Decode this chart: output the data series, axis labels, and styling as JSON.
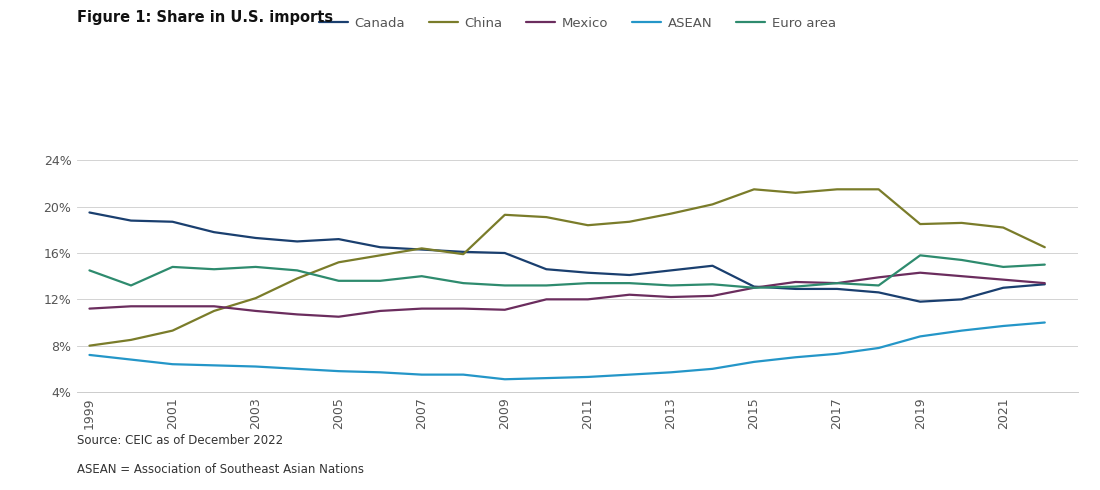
{
  "title": "Figure 1: Share in U.S. imports",
  "years": [
    1999,
    2000,
    2001,
    2002,
    2003,
    2004,
    2005,
    2006,
    2007,
    2008,
    2009,
    2010,
    2011,
    2012,
    2013,
    2014,
    2015,
    2016,
    2017,
    2018,
    2019,
    2020,
    2021,
    2022
  ],
  "canada": [
    19.5,
    18.8,
    18.7,
    17.8,
    17.3,
    17.0,
    17.2,
    16.5,
    16.3,
    16.1,
    16.0,
    14.6,
    14.3,
    14.1,
    14.5,
    14.9,
    13.1,
    12.9,
    12.9,
    12.6,
    11.8,
    12.0,
    13.0,
    13.3
  ],
  "china": [
    8.0,
    8.5,
    9.3,
    11.0,
    12.1,
    13.8,
    15.2,
    15.8,
    16.4,
    15.9,
    19.3,
    19.1,
    18.4,
    18.7,
    19.4,
    20.2,
    21.5,
    21.2,
    21.5,
    21.5,
    18.5,
    18.6,
    18.2,
    16.5
  ],
  "mexico": [
    11.2,
    11.4,
    11.4,
    11.4,
    11.0,
    10.7,
    10.5,
    11.0,
    11.2,
    11.2,
    11.1,
    12.0,
    12.0,
    12.4,
    12.2,
    12.3,
    13.0,
    13.5,
    13.4,
    13.9,
    14.3,
    14.0,
    13.7,
    13.4
  ],
  "asean": [
    7.2,
    6.8,
    6.4,
    6.3,
    6.2,
    6.0,
    5.8,
    5.7,
    5.5,
    5.5,
    5.1,
    5.2,
    5.3,
    5.5,
    5.7,
    6.0,
    6.6,
    7.0,
    7.3,
    7.8,
    8.8,
    9.3,
    9.7,
    10.0
  ],
  "euro_area": [
    14.5,
    13.2,
    14.8,
    14.6,
    14.8,
    14.5,
    13.6,
    13.6,
    14.0,
    13.4,
    13.2,
    13.2,
    13.4,
    13.4,
    13.2,
    13.3,
    13.0,
    13.1,
    13.4,
    13.2,
    15.8,
    15.4,
    14.8,
    15.0
  ],
  "legend_labels": [
    "Canada",
    "China",
    "Mexico",
    "ASEAN",
    "Euro area"
  ],
  "line_colors": {
    "canada": "#1a3f6f",
    "china": "#7a7c2a",
    "mexico": "#6b2d5e",
    "asean": "#2496c8",
    "euro_area": "#2e8b6e"
  },
  "ylim": [
    4,
    26
  ],
  "yticks": [
    4,
    8,
    12,
    16,
    20,
    24
  ],
  "ytick_labels": [
    "4%",
    "8%",
    "12%",
    "16%",
    "20%",
    "24%"
  ],
  "xticks": [
    1999,
    2001,
    2003,
    2005,
    2007,
    2009,
    2011,
    2013,
    2015,
    2017,
    2019,
    2021
  ],
  "source_text": "Source: CEIC as of December 2022",
  "note_text": "ASEAN = Association of Southeast Asian Nations",
  "title_fontsize": 10.5,
  "tick_fontsize": 9,
  "legend_fontsize": 9.5,
  "source_fontsize": 8.5,
  "linewidth": 1.6
}
